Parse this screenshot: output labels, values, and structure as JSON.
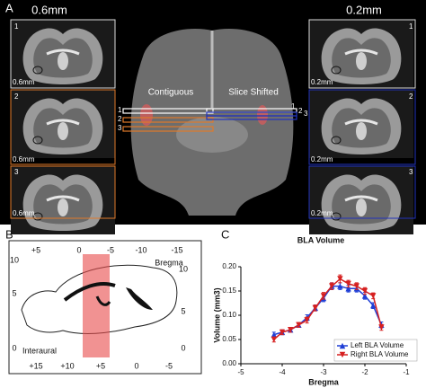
{
  "panel_a": {
    "letter": "A",
    "left_title": "0.6mm",
    "right_title": "0.2mm",
    "left_slices": [
      {
        "number": "1",
        "thickness": "0.6mm"
      },
      {
        "number": "2",
        "thickness": "0.6mm"
      },
      {
        "number": "3",
        "thickness": "0.6mm"
      }
    ],
    "right_slices": [
      {
        "number": "1",
        "thickness": "0.2mm"
      },
      {
        "number": "2",
        "thickness": "0.2mm"
      },
      {
        "number": "3",
        "thickness": "0.2mm"
      }
    ],
    "center_left_label": "Contiguous",
    "center_right_label": "Slice Shifted",
    "center_left_numbers": [
      "1",
      "2",
      "3"
    ],
    "center_right_numbers": [
      "1",
      "2",
      "3"
    ]
  },
  "panel_b": {
    "letter": "B",
    "top_scale": [
      "+5",
      "0",
      "-5",
      "-10",
      "-15"
    ],
    "bregma_label": "Bregma",
    "left_scale": [
      "10",
      "5",
      "0"
    ],
    "right_scale": [
      "10",
      "5",
      "0"
    ],
    "interaural_label": "Interaural",
    "bottom_scale": [
      "+15",
      "+10",
      "+5",
      "0",
      "-5"
    ]
  },
  "chart_data": {
    "panel_letter": "C",
    "type": "line",
    "title": "BLA Volume",
    "x_label": "Bregma",
    "y_label": "Volume (mm3)",
    "x": [
      -4.2,
      -4.0,
      -3.8,
      -3.6,
      -3.4,
      -3.2,
      -3.0,
      -2.8,
      -2.6,
      -2.4,
      -2.2,
      -2.0,
      -1.8,
      -1.6
    ],
    "series": [
      {
        "name": "Left BLA Volume",
        "color": "#1f3fd6",
        "marker": "triangle",
        "values": [
          0.06,
          0.065,
          0.07,
          0.08,
          0.095,
          0.115,
          0.135,
          0.16,
          0.16,
          0.155,
          0.155,
          0.14,
          0.12,
          0.08
        ],
        "errors": [
          0.005,
          0.005,
          0.005,
          0.005,
          0.006,
          0.006,
          0.007,
          0.007,
          0.007,
          0.007,
          0.007,
          0.007,
          0.006,
          0.006
        ]
      },
      {
        "name": "Right BLA Volume",
        "color": "#d62020",
        "marker": "triangle-down",
        "values": [
          0.05,
          0.065,
          0.07,
          0.08,
          0.09,
          0.115,
          0.14,
          0.16,
          0.175,
          0.165,
          0.16,
          0.15,
          0.14,
          0.075
        ],
        "errors": [
          0.005,
          0.005,
          0.005,
          0.005,
          0.006,
          0.006,
          0.007,
          0.007,
          0.008,
          0.007,
          0.007,
          0.007,
          0.006,
          0.006
        ]
      }
    ],
    "xlim": [
      -5,
      -1
    ],
    "xticks": [
      -5,
      -4,
      -3,
      -2,
      -1
    ],
    "ylim": [
      0,
      0.2
    ],
    "yticks": [
      {
        "value": 0,
        "label": "0.00"
      },
      {
        "value": 0.05,
        "label": "0.05"
      },
      {
        "value": 0.1,
        "label": "0.10"
      },
      {
        "value": 0.15,
        "label": "0.15"
      },
      {
        "value": 0.2,
        "label": "0.20"
      }
    ],
    "legend": "lower right"
  }
}
